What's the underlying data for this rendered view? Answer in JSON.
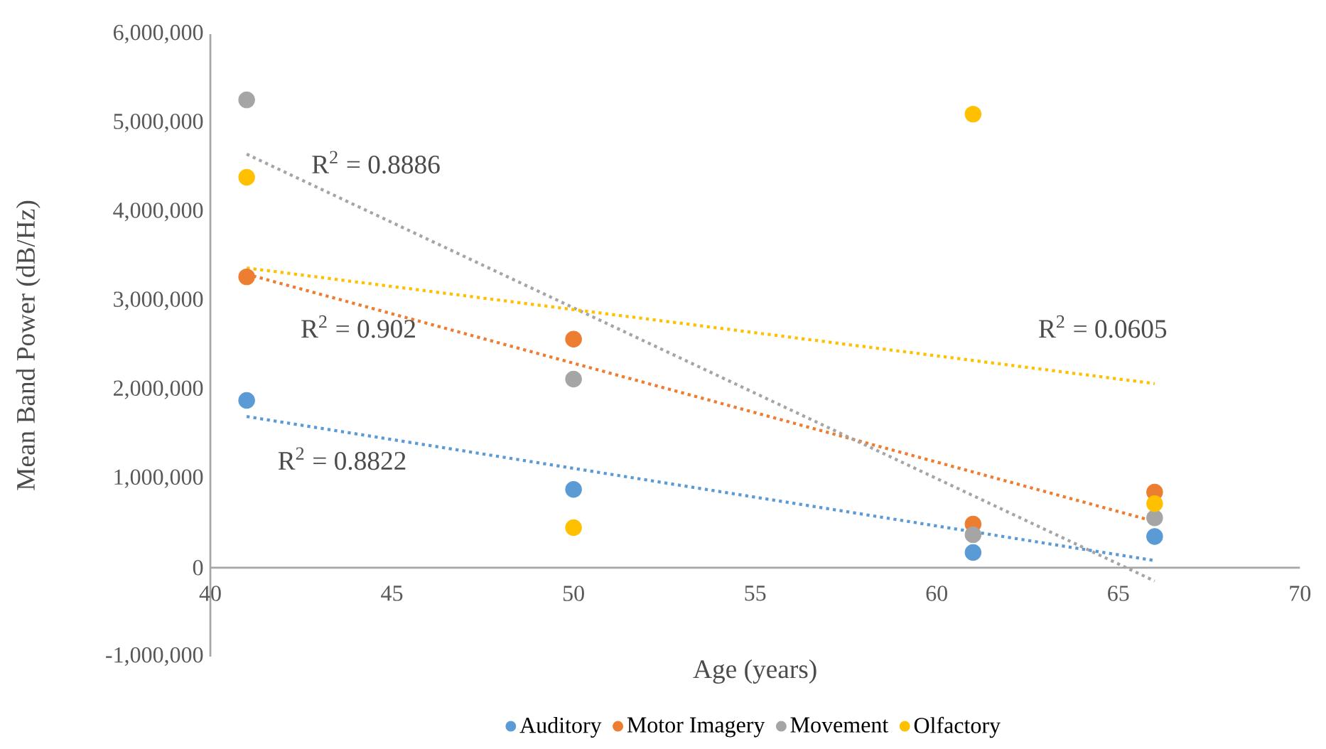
{
  "chart_data": {
    "type": "scatter",
    "xlabel": "Age (years)",
    "ylabel": "Mean Band Power (dB/Hz)",
    "xlim": [
      40,
      70
    ],
    "xticks": [
      40,
      45,
      50,
      55,
      60,
      65,
      70
    ],
    "ylim": [
      -1000000,
      6000000
    ],
    "yticks": [
      {
        "value": -1000000,
        "label": "-1,000,000"
      },
      {
        "value": 0,
        "label": "0"
      },
      {
        "value": 1000000,
        "label": "1,000,000"
      },
      {
        "value": 2000000,
        "label": "2,000,000"
      },
      {
        "value": 3000000,
        "label": "3,000,000"
      },
      {
        "value": 4000000,
        "label": "4,000,000"
      },
      {
        "value": 5000000,
        "label": "5,000,000"
      },
      {
        "value": 6000000,
        "label": "6,000,000"
      }
    ],
    "grid": false,
    "legend": "bottom",
    "marker": "circle",
    "series": [
      {
        "name": "Auditory",
        "color": "#5b9bd5",
        "x": [
          41,
          50,
          61,
          66
        ],
        "values": [
          1880000,
          880000,
          170000,
          350000
        ]
      },
      {
        "name": "Motor Imagery",
        "color": "#ed7d31",
        "x": [
          41,
          50,
          61,
          66
        ],
        "values": [
          3270000,
          2570000,
          490000,
          850000
        ]
      },
      {
        "name": "Movement",
        "color": "#a5a5a5",
        "x": [
          41,
          50,
          61,
          66
        ],
        "values": [
          5260000,
          2120000,
          370000,
          560000
        ]
      },
      {
        "name": "Olfactory",
        "color": "#ffc000",
        "x": [
          41,
          50,
          61,
          66
        ],
        "values": [
          4390000,
          450000,
          5100000,
          720000
        ]
      },
      {
        "type": "line",
        "marker": "none",
        "line_style": "dotted",
        "color": "#5b9bd5",
        "x": [
          41,
          66
        ],
        "values": [
          1700000,
          80000
        ]
      },
      {
        "type": "line",
        "marker": "none",
        "line_style": "dotted",
        "color": "#ed7d31",
        "x": [
          41,
          66
        ],
        "values": [
          3300000,
          520000
        ]
      },
      {
        "type": "line",
        "marker": "none",
        "line_style": "dotted",
        "color": "#a5a5a5",
        "x": [
          41,
          66
        ],
        "values": [
          4650000,
          -150000
        ]
      },
      {
        "type": "line",
        "marker": "none",
        "line_style": "dotted",
        "color": "#ffc000",
        "x": [
          41,
          66
        ],
        "values": [
          3370000,
          2070000
        ]
      }
    ],
    "annotations": [
      "R$^{2}$ = 0.8886",
      "R$^{2}$ = 0.902",
      "R$^{2}$ = 0.8822",
      "R$^{2}$ = 0.0605"
    ]
  }
}
